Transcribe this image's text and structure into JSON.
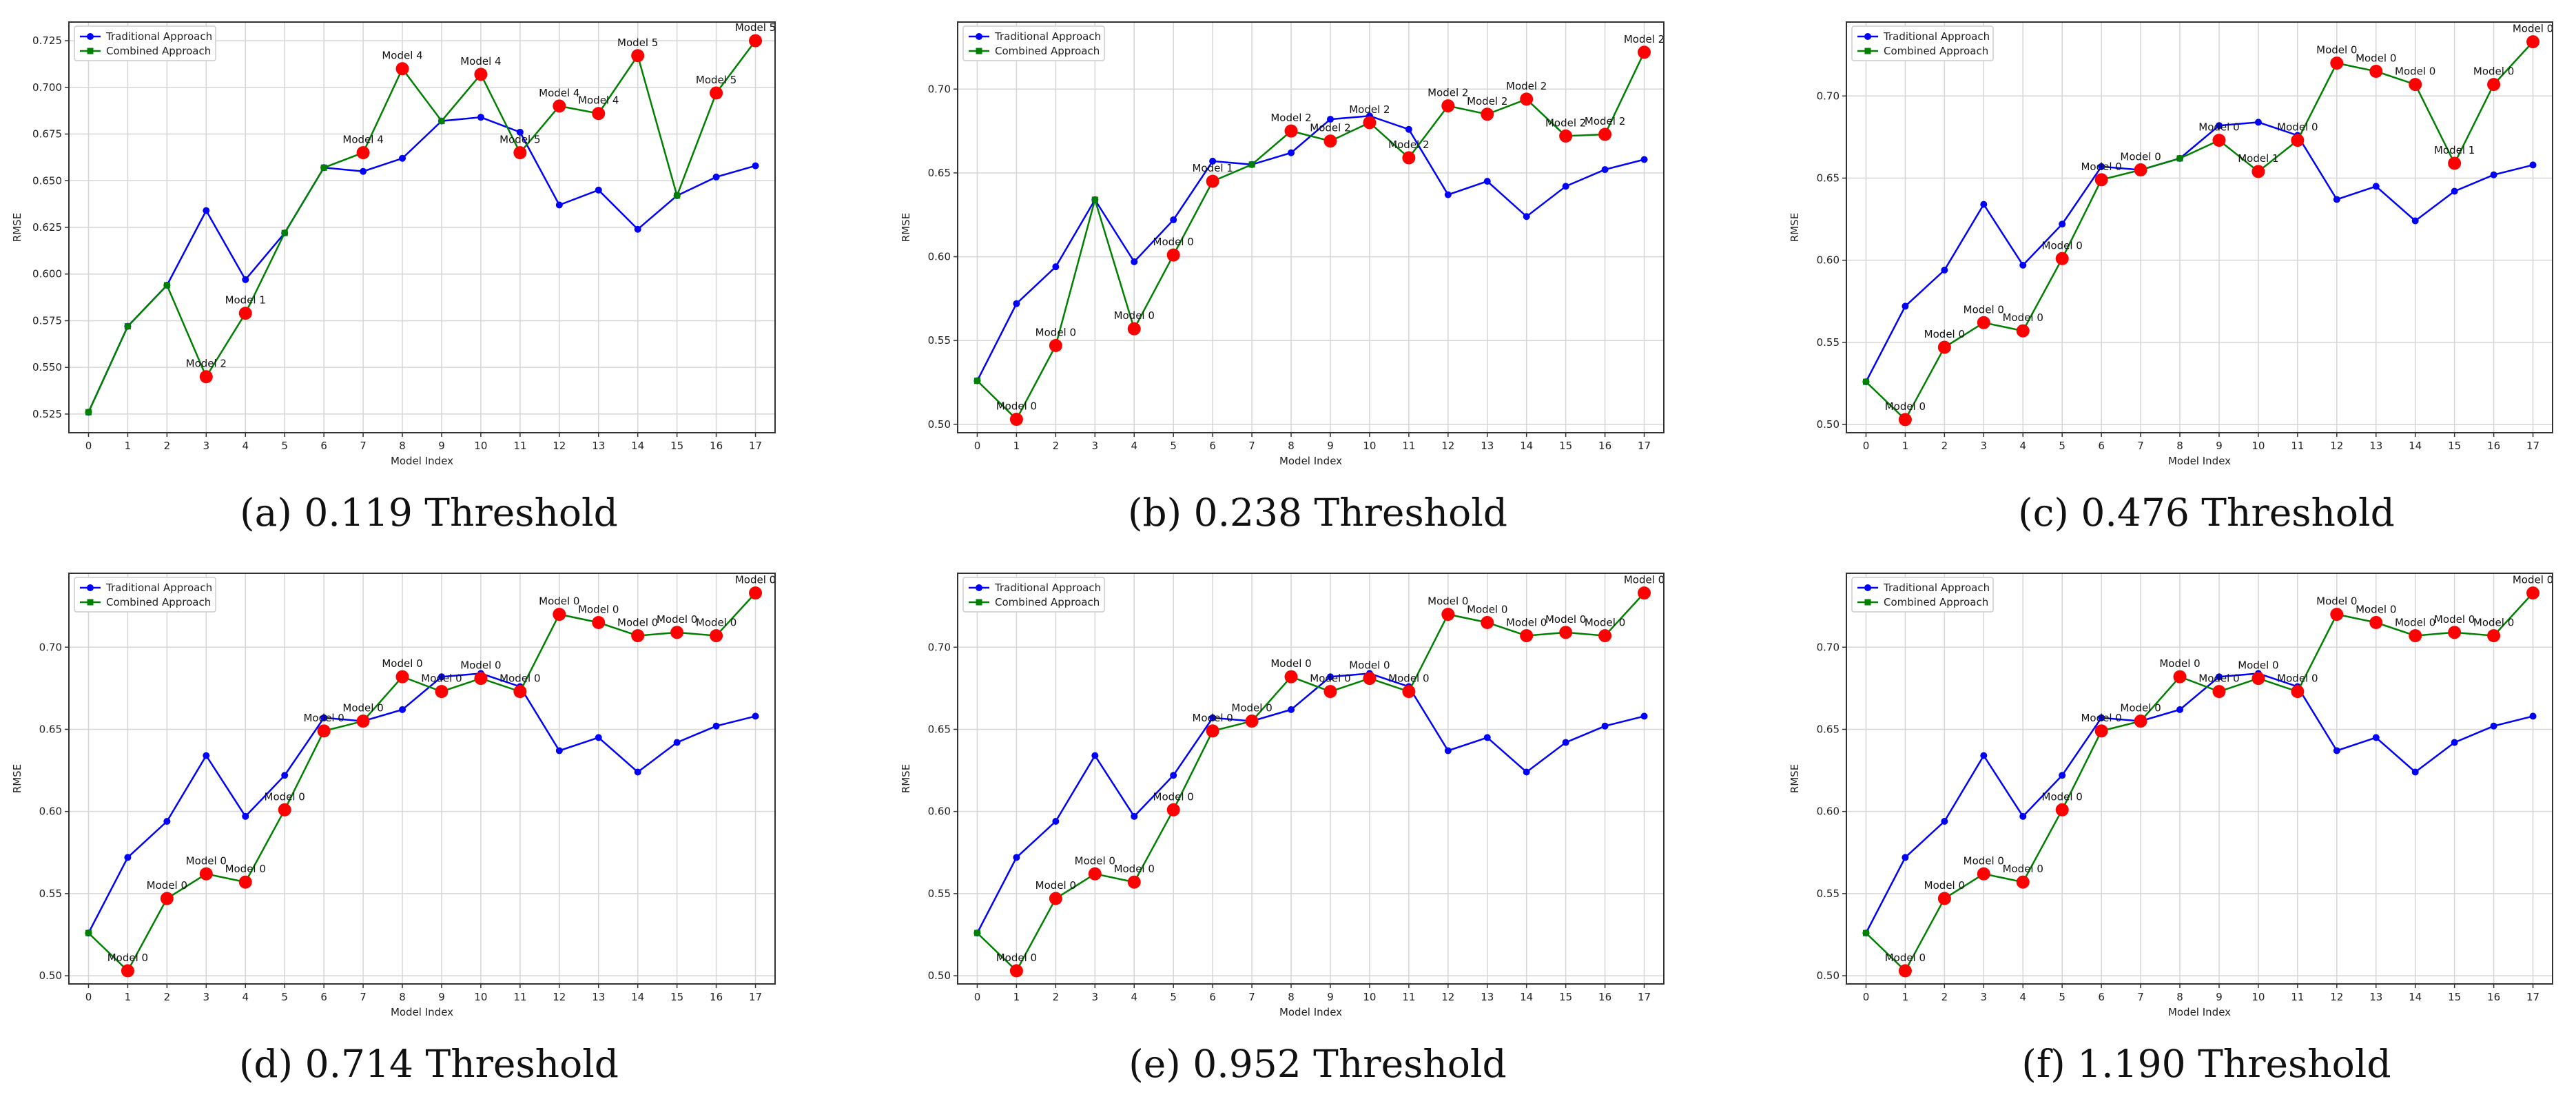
{
  "chart_data": [
    {
      "type": "line",
      "caption": "(a) 0.119 Threshold",
      "xlabel": "Model Index",
      "ylabel": "RMSE",
      "x": [
        0,
        1,
        2,
        3,
        4,
        5,
        6,
        7,
        8,
        9,
        10,
        11,
        12,
        13,
        14,
        15,
        16,
        17
      ],
      "ylim": [
        0.515,
        0.735
      ],
      "yticks": [
        0.525,
        0.55,
        0.575,
        0.6,
        0.625,
        0.65,
        0.675,
        0.7,
        0.725
      ],
      "ytick_labels": [
        "0.525",
        "0.550",
        "0.575",
        "0.600",
        "0.625",
        "0.650",
        "0.675",
        "0.700",
        "0.725"
      ],
      "grid": true,
      "legend_position": "top-left",
      "series": [
        {
          "name": "Traditional Approach",
          "color": "#0000ff",
          "marker": "circle",
          "values": [
            0.526,
            0.572,
            0.594,
            0.634,
            0.597,
            0.622,
            0.657,
            0.655,
            0.662,
            0.682,
            0.684,
            0.676,
            0.637,
            0.645,
            0.624,
            0.642,
            0.652,
            0.658
          ]
        },
        {
          "name": "Combined Approach",
          "color": "#008000",
          "marker": "square",
          "values": [
            0.526,
            0.572,
            0.594,
            0.545,
            0.579,
            0.622,
            0.657,
            0.665,
            0.71,
            0.682,
            0.707,
            0.665,
            0.69,
            0.686,
            0.717,
            0.642,
            0.697,
            0.725
          ]
        }
      ],
      "highlight_color": "#ff0000",
      "highlights": [
        {
          "x": 3,
          "y": 0.545,
          "label": "Model 2"
        },
        {
          "x": 4,
          "y": 0.579,
          "label": "Model 1"
        },
        {
          "x": 7,
          "y": 0.665,
          "label": "Model 4"
        },
        {
          "x": 8,
          "y": 0.71,
          "label": "Model 4"
        },
        {
          "x": 10,
          "y": 0.707,
          "label": "Model 4"
        },
        {
          "x": 11,
          "y": 0.665,
          "label": "Model 5"
        },
        {
          "x": 12,
          "y": 0.69,
          "label": "Model 4"
        },
        {
          "x": 13,
          "y": 0.686,
          "label": "Model 4"
        },
        {
          "x": 14,
          "y": 0.717,
          "label": "Model 5"
        },
        {
          "x": 16,
          "y": 0.697,
          "label": "Model 5"
        },
        {
          "x": 17,
          "y": 0.725,
          "label": "Model 5"
        }
      ]
    },
    {
      "type": "line",
      "caption": "(b) 0.238 Threshold",
      "xlabel": "Model Index",
      "ylabel": "RMSE",
      "x": [
        0,
        1,
        2,
        3,
        4,
        5,
        6,
        7,
        8,
        9,
        10,
        11,
        12,
        13,
        14,
        15,
        16,
        17
      ],
      "ylim": [
        0.495,
        0.74
      ],
      "yticks": [
        0.5,
        0.55,
        0.6,
        0.65,
        0.7
      ],
      "ytick_labels": [
        "0.50",
        "0.55",
        "0.60",
        "0.65",
        "0.70"
      ],
      "grid": true,
      "legend_position": "top-left",
      "series": [
        {
          "name": "Traditional Approach",
          "color": "#0000ff",
          "marker": "circle",
          "values": [
            0.526,
            0.572,
            0.594,
            0.634,
            0.597,
            0.622,
            0.657,
            0.655,
            0.662,
            0.682,
            0.684,
            0.676,
            0.637,
            0.645,
            0.624,
            0.642,
            0.652,
            0.658
          ]
        },
        {
          "name": "Combined Approach",
          "color": "#008000",
          "marker": "square",
          "values": [
            0.526,
            0.503,
            0.547,
            0.634,
            0.557,
            0.601,
            0.645,
            0.655,
            0.675,
            0.669,
            0.68,
            0.659,
            0.69,
            0.685,
            0.694,
            0.672,
            0.673,
            0.722
          ]
        }
      ],
      "highlight_color": "#ff0000",
      "highlights": [
        {
          "x": 1,
          "y": 0.503,
          "label": "Model 0"
        },
        {
          "x": 2,
          "y": 0.547,
          "label": "Model 0"
        },
        {
          "x": 4,
          "y": 0.557,
          "label": "Model 0"
        },
        {
          "x": 5,
          "y": 0.601,
          "label": "Model 0"
        },
        {
          "x": 6,
          "y": 0.645,
          "label": "Model 1"
        },
        {
          "x": 8,
          "y": 0.675,
          "label": "Model 2"
        },
        {
          "x": 9,
          "y": 0.669,
          "label": "Model 2"
        },
        {
          "x": 10,
          "y": 0.68,
          "label": "Model 2"
        },
        {
          "x": 11,
          "y": 0.659,
          "label": "Model 2"
        },
        {
          "x": 12,
          "y": 0.69,
          "label": "Model 2"
        },
        {
          "x": 13,
          "y": 0.685,
          "label": "Model 2"
        },
        {
          "x": 14,
          "y": 0.694,
          "label": "Model 2"
        },
        {
          "x": 15,
          "y": 0.672,
          "label": "Model 2"
        },
        {
          "x": 16,
          "y": 0.673,
          "label": "Model 2"
        },
        {
          "x": 17,
          "y": 0.722,
          "label": "Model 2"
        }
      ]
    },
    {
      "type": "line",
      "caption": "(c) 0.476 Threshold",
      "xlabel": "Model Index",
      "ylabel": "RMSE",
      "x": [
        0,
        1,
        2,
        3,
        4,
        5,
        6,
        7,
        8,
        9,
        10,
        11,
        12,
        13,
        14,
        15,
        16,
        17
      ],
      "ylim": [
        0.495,
        0.745
      ],
      "yticks": [
        0.5,
        0.55,
        0.6,
        0.65,
        0.7
      ],
      "ytick_labels": [
        "0.50",
        "0.55",
        "0.60",
        "0.65",
        "0.70"
      ],
      "grid": true,
      "legend_position": "top-left",
      "series": [
        {
          "name": "Traditional Approach",
          "color": "#0000ff",
          "marker": "circle",
          "values": [
            0.526,
            0.572,
            0.594,
            0.634,
            0.597,
            0.622,
            0.657,
            0.655,
            0.662,
            0.682,
            0.684,
            0.676,
            0.637,
            0.645,
            0.624,
            0.642,
            0.652,
            0.658
          ]
        },
        {
          "name": "Combined Approach",
          "color": "#008000",
          "marker": "square",
          "values": [
            0.526,
            0.503,
            0.547,
            0.562,
            0.557,
            0.601,
            0.649,
            0.655,
            0.662,
            0.673,
            0.654,
            0.673,
            0.72,
            0.715,
            0.707,
            0.659,
            0.707,
            0.733
          ]
        }
      ],
      "highlight_color": "#ff0000",
      "highlights": [
        {
          "x": 1,
          "y": 0.503,
          "label": "Model 0"
        },
        {
          "x": 2,
          "y": 0.547,
          "label": "Model 0"
        },
        {
          "x": 3,
          "y": 0.562,
          "label": "Model 0"
        },
        {
          "x": 4,
          "y": 0.557,
          "label": "Model 0"
        },
        {
          "x": 5,
          "y": 0.601,
          "label": "Model 0"
        },
        {
          "x": 6,
          "y": 0.649,
          "label": "Model 0"
        },
        {
          "x": 7,
          "y": 0.655,
          "label": "Model 0"
        },
        {
          "x": 9,
          "y": 0.673,
          "label": "Model 0"
        },
        {
          "x": 10,
          "y": 0.654,
          "label": "Model 1"
        },
        {
          "x": 11,
          "y": 0.673,
          "label": "Model 0"
        },
        {
          "x": 12,
          "y": 0.72,
          "label": "Model 0"
        },
        {
          "x": 13,
          "y": 0.715,
          "label": "Model 0"
        },
        {
          "x": 14,
          "y": 0.707,
          "label": "Model 0"
        },
        {
          "x": 15,
          "y": 0.659,
          "label": "Model 1"
        },
        {
          "x": 16,
          "y": 0.707,
          "label": "Model 0"
        },
        {
          "x": 17,
          "y": 0.733,
          "label": "Model 0"
        }
      ]
    },
    {
      "type": "line",
      "caption": "(d) 0.714 Threshold",
      "xlabel": "Model Index",
      "ylabel": "RMSE",
      "x": [
        0,
        1,
        2,
        3,
        4,
        5,
        6,
        7,
        8,
        9,
        10,
        11,
        12,
        13,
        14,
        15,
        16,
        17
      ],
      "ylim": [
        0.495,
        0.745
      ],
      "yticks": [
        0.5,
        0.55,
        0.6,
        0.65,
        0.7
      ],
      "ytick_labels": [
        "0.50",
        "0.55",
        "0.60",
        "0.65",
        "0.70"
      ],
      "grid": true,
      "legend_position": "top-left",
      "series": [
        {
          "name": "Traditional Approach",
          "color": "#0000ff",
          "marker": "circle",
          "values": [
            0.526,
            0.572,
            0.594,
            0.634,
            0.597,
            0.622,
            0.657,
            0.655,
            0.662,
            0.682,
            0.684,
            0.676,
            0.637,
            0.645,
            0.624,
            0.642,
            0.652,
            0.658
          ]
        },
        {
          "name": "Combined Approach",
          "color": "#008000",
          "marker": "square",
          "values": [
            0.526,
            0.503,
            0.547,
            0.562,
            0.557,
            0.601,
            0.649,
            0.655,
            0.682,
            0.673,
            0.681,
            0.673,
            0.72,
            0.715,
            0.707,
            0.709,
            0.707,
            0.733
          ]
        }
      ],
      "highlight_color": "#ff0000",
      "highlights": [
        {
          "x": 1,
          "y": 0.503,
          "label": "Model 0"
        },
        {
          "x": 2,
          "y": 0.547,
          "label": "Model 0"
        },
        {
          "x": 3,
          "y": 0.562,
          "label": "Model 0"
        },
        {
          "x": 4,
          "y": 0.557,
          "label": "Model 0"
        },
        {
          "x": 5,
          "y": 0.601,
          "label": "Model 0"
        },
        {
          "x": 6,
          "y": 0.649,
          "label": "Model 0"
        },
        {
          "x": 7,
          "y": 0.655,
          "label": "Model 0"
        },
        {
          "x": 8,
          "y": 0.682,
          "label": "Model 0"
        },
        {
          "x": 9,
          "y": 0.673,
          "label": "Model 0"
        },
        {
          "x": 10,
          "y": 0.681,
          "label": "Model 0"
        },
        {
          "x": 11,
          "y": 0.673,
          "label": "Model 0"
        },
        {
          "x": 12,
          "y": 0.72,
          "label": "Model 0"
        },
        {
          "x": 13,
          "y": 0.715,
          "label": "Model 0"
        },
        {
          "x": 14,
          "y": 0.707,
          "label": "Model 0"
        },
        {
          "x": 15,
          "y": 0.709,
          "label": "Model 0"
        },
        {
          "x": 16,
          "y": 0.707,
          "label": "Model 0"
        },
        {
          "x": 17,
          "y": 0.733,
          "label": "Model 0"
        }
      ]
    },
    {
      "type": "line",
      "caption": "(e) 0.952 Threshold",
      "xlabel": "Model Index",
      "ylabel": "RMSE",
      "x": [
        0,
        1,
        2,
        3,
        4,
        5,
        6,
        7,
        8,
        9,
        10,
        11,
        12,
        13,
        14,
        15,
        16,
        17
      ],
      "ylim": [
        0.495,
        0.745
      ],
      "yticks": [
        0.5,
        0.55,
        0.6,
        0.65,
        0.7
      ],
      "ytick_labels": [
        "0.50",
        "0.55",
        "0.60",
        "0.65",
        "0.70"
      ],
      "grid": true,
      "legend_position": "top-left",
      "series": [
        {
          "name": "Traditional Approach",
          "color": "#0000ff",
          "marker": "circle",
          "values": [
            0.526,
            0.572,
            0.594,
            0.634,
            0.597,
            0.622,
            0.657,
            0.655,
            0.662,
            0.682,
            0.684,
            0.676,
            0.637,
            0.645,
            0.624,
            0.642,
            0.652,
            0.658
          ]
        },
        {
          "name": "Combined Approach",
          "color": "#008000",
          "marker": "square",
          "values": [
            0.526,
            0.503,
            0.547,
            0.562,
            0.557,
            0.601,
            0.649,
            0.655,
            0.682,
            0.673,
            0.681,
            0.673,
            0.72,
            0.715,
            0.707,
            0.709,
            0.707,
            0.733
          ]
        }
      ],
      "highlight_color": "#ff0000",
      "highlights": [
        {
          "x": 1,
          "y": 0.503,
          "label": "Model 0"
        },
        {
          "x": 2,
          "y": 0.547,
          "label": "Model 0"
        },
        {
          "x": 3,
          "y": 0.562,
          "label": "Model 0"
        },
        {
          "x": 4,
          "y": 0.557,
          "label": "Model 0"
        },
        {
          "x": 5,
          "y": 0.601,
          "label": "Model 0"
        },
        {
          "x": 6,
          "y": 0.649,
          "label": "Model 0"
        },
        {
          "x": 7,
          "y": 0.655,
          "label": "Model 0"
        },
        {
          "x": 8,
          "y": 0.682,
          "label": "Model 0"
        },
        {
          "x": 9,
          "y": 0.673,
          "label": "Model 0"
        },
        {
          "x": 10,
          "y": 0.681,
          "label": "Model 0"
        },
        {
          "x": 11,
          "y": 0.673,
          "label": "Model 0"
        },
        {
          "x": 12,
          "y": 0.72,
          "label": "Model 0"
        },
        {
          "x": 13,
          "y": 0.715,
          "label": "Model 0"
        },
        {
          "x": 14,
          "y": 0.707,
          "label": "Model 0"
        },
        {
          "x": 15,
          "y": 0.709,
          "label": "Model 0"
        },
        {
          "x": 16,
          "y": 0.707,
          "label": "Model 0"
        },
        {
          "x": 17,
          "y": 0.733,
          "label": "Model 0"
        }
      ]
    },
    {
      "type": "line",
      "caption": "(f) 1.190 Threshold",
      "xlabel": "Model Index",
      "ylabel": "RMSE",
      "x": [
        0,
        1,
        2,
        3,
        4,
        5,
        6,
        7,
        8,
        9,
        10,
        11,
        12,
        13,
        14,
        15,
        16,
        17
      ],
      "ylim": [
        0.495,
        0.745
      ],
      "yticks": [
        0.5,
        0.55,
        0.6,
        0.65,
        0.7
      ],
      "ytick_labels": [
        "0.50",
        "0.55",
        "0.60",
        "0.65",
        "0.70"
      ],
      "grid": true,
      "legend_position": "top-left",
      "series": [
        {
          "name": "Traditional Approach",
          "color": "#0000ff",
          "marker": "circle",
          "values": [
            0.526,
            0.572,
            0.594,
            0.634,
            0.597,
            0.622,
            0.657,
            0.655,
            0.662,
            0.682,
            0.684,
            0.676,
            0.637,
            0.645,
            0.624,
            0.642,
            0.652,
            0.658
          ]
        },
        {
          "name": "Combined Approach",
          "color": "#008000",
          "marker": "square",
          "values": [
            0.526,
            0.503,
            0.547,
            0.562,
            0.557,
            0.601,
            0.649,
            0.655,
            0.682,
            0.673,
            0.681,
            0.673,
            0.72,
            0.715,
            0.707,
            0.709,
            0.707,
            0.733
          ]
        }
      ],
      "highlight_color": "#ff0000",
      "highlights": [
        {
          "x": 1,
          "y": 0.503,
          "label": "Model 0"
        },
        {
          "x": 2,
          "y": 0.547,
          "label": "Model 0"
        },
        {
          "x": 3,
          "y": 0.562,
          "label": "Model 0"
        },
        {
          "x": 4,
          "y": 0.557,
          "label": "Model 0"
        },
        {
          "x": 5,
          "y": 0.601,
          "label": "Model 0"
        },
        {
          "x": 6,
          "y": 0.649,
          "label": "Model 0"
        },
        {
          "x": 7,
          "y": 0.655,
          "label": "Model 0"
        },
        {
          "x": 8,
          "y": 0.682,
          "label": "Model 0"
        },
        {
          "x": 9,
          "y": 0.673,
          "label": "Model 0"
        },
        {
          "x": 10,
          "y": 0.681,
          "label": "Model 0"
        },
        {
          "x": 11,
          "y": 0.673,
          "label": "Model 0"
        },
        {
          "x": 12,
          "y": 0.72,
          "label": "Model 0"
        },
        {
          "x": 13,
          "y": 0.715,
          "label": "Model 0"
        },
        {
          "x": 14,
          "y": 0.707,
          "label": "Model 0"
        },
        {
          "x": 15,
          "y": 0.709,
          "label": "Model 0"
        },
        {
          "x": 16,
          "y": 0.707,
          "label": "Model 0"
        },
        {
          "x": 17,
          "y": 0.733,
          "label": "Model 0"
        }
      ]
    }
  ]
}
